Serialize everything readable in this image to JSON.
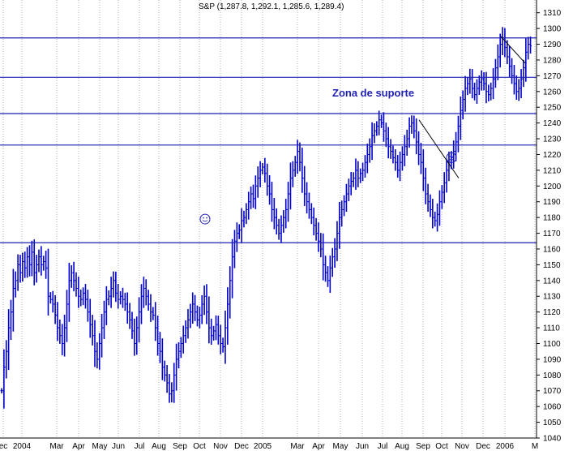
{
  "chart_data": {
    "type": "ohlc",
    "title": "S&P (1,287.8, 1,292.1, 1,285.6, 1,289.4)",
    "xlabel": "",
    "ylabel": "",
    "ylim": [
      1040,
      1315
    ],
    "y_ticks": [
      1040,
      1050,
      1060,
      1070,
      1080,
      1090,
      1100,
      1110,
      1120,
      1130,
      1140,
      1150,
      1160,
      1170,
      1180,
      1190,
      1200,
      1210,
      1220,
      1230,
      1240,
      1250,
      1260,
      1270,
      1280,
      1290,
      1300,
      1310
    ],
    "x_ticks": [
      "ec",
      "2004",
      "Mar",
      "Apr",
      "May",
      "Jun",
      "Jul",
      "Aug",
      "Sep",
      "Oct",
      "Nov",
      "Dec",
      "2005",
      "Mar",
      "Apr",
      "May",
      "Jun",
      "Jul",
      "Aug",
      "Sep",
      "Oct",
      "Nov",
      "Dec",
      "2006",
      "M"
    ],
    "grid": "vertical-dotted",
    "colors": {
      "bars": "#0000cc",
      "support_lines": "#1f1fb4",
      "annotation": "#1f1fb4",
      "background": "#ffffff"
    },
    "support_levels": [
      1294,
      1269,
      1246,
      1226,
      1164
    ],
    "annotation": "Zona de suporte",
    "series": [
      {
        "points": [
          [
            0,
            1070
          ],
          [
            2,
            1085
          ],
          [
            4,
            1095
          ],
          [
            6,
            1110
          ],
          [
            8,
            1120
          ],
          [
            10,
            1135
          ],
          [
            12,
            1140
          ],
          [
            14,
            1150
          ],
          [
            16,
            1145
          ],
          [
            18,
            1152
          ],
          [
            20,
            1148
          ],
          [
            22,
            1155
          ],
          [
            24,
            1150
          ],
          [
            26,
            1158
          ],
          [
            28,
            1145
          ],
          [
            30,
            1150
          ],
          [
            32,
            1155
          ],
          [
            34,
            1150
          ],
          [
            36,
            1152
          ],
          [
            38,
            1148
          ],
          [
            40,
            1130
          ],
          [
            42,
            1128
          ],
          [
            44,
            1125
          ],
          [
            46,
            1118
          ],
          [
            48,
            1110
          ],
          [
            50,
            1105
          ],
          [
            52,
            1100
          ],
          [
            54,
            1110
          ],
          [
            56,
            1125
          ],
          [
            58,
            1140
          ],
          [
            60,
            1145
          ],
          [
            62,
            1140
          ],
          [
            64,
            1135
          ],
          [
            66,
            1130
          ],
          [
            68,
            1128
          ],
          [
            70,
            1132
          ],
          [
            72,
            1128
          ],
          [
            74,
            1120
          ],
          [
            76,
            1112
          ],
          [
            78,
            1105
          ],
          [
            80,
            1095
          ],
          [
            82,
            1090
          ],
          [
            84,
            1100
          ],
          [
            86,
            1110
          ],
          [
            88,
            1120
          ],
          [
            90,
            1128
          ],
          [
            92,
            1130
          ],
          [
            94,
            1135
          ],
          [
            96,
            1140
          ],
          [
            98,
            1132
          ],
          [
            100,
            1128
          ],
          [
            102,
            1130
          ],
          [
            104,
            1128
          ],
          [
            106,
            1125
          ],
          [
            108,
            1120
          ],
          [
            110,
            1115
          ],
          [
            112,
            1108
          ],
          [
            114,
            1100
          ],
          [
            116,
            1110
          ],
          [
            118,
            1120
          ],
          [
            120,
            1130
          ],
          [
            122,
            1135
          ],
          [
            124,
            1130
          ],
          [
            126,
            1125
          ],
          [
            128,
            1120
          ],
          [
            130,
            1118
          ],
          [
            132,
            1110
          ],
          [
            134,
            1100
          ],
          [
            136,
            1095
          ],
          [
            138,
            1085
          ],
          [
            140,
            1080
          ],
          [
            142,
            1075
          ],
          [
            144,
            1068
          ],
          [
            146,
            1070
          ],
          [
            148,
            1080
          ],
          [
            150,
            1090
          ],
          [
            152,
            1095
          ],
          [
            154,
            1100
          ],
          [
            156,
            1105
          ],
          [
            158,
            1110
          ],
          [
            160,
            1115
          ],
          [
            162,
            1120
          ],
          [
            164,
            1125
          ],
          [
            166,
            1120
          ],
          [
            168,
            1115
          ],
          [
            170,
            1118
          ],
          [
            172,
            1125
          ],
          [
            174,
            1130
          ],
          [
            176,
            1120
          ],
          [
            178,
            1110
          ],
          [
            180,
            1105
          ],
          [
            182,
            1108
          ],
          [
            184,
            1112
          ],
          [
            186,
            1105
          ],
          [
            188,
            1100
          ],
          [
            190,
            1098
          ],
          [
            192,
            1110
          ],
          [
            194,
            1125
          ],
          [
            196,
            1140
          ],
          [
            198,
            1155
          ],
          [
            200,
            1165
          ],
          [
            202,
            1170
          ],
          [
            204,
            1172
          ],
          [
            206,
            1178
          ],
          [
            208,
            1180
          ],
          [
            210,
            1185
          ],
          [
            212,
            1190
          ],
          [
            214,
            1195
          ],
          [
            216,
            1192
          ],
          [
            218,
            1200
          ],
          [
            220,
            1205
          ],
          [
            222,
            1210
          ],
          [
            224,
            1212
          ],
          [
            226,
            1208
          ],
          [
            228,
            1200
          ],
          [
            230,
            1195
          ],
          [
            232,
            1185
          ],
          [
            234,
            1180
          ],
          [
            236,
            1175
          ],
          [
            238,
            1170
          ],
          [
            240,
            1175
          ],
          [
            242,
            1180
          ],
          [
            244,
            1185
          ],
          [
            246,
            1195
          ],
          [
            248,
            1205
          ],
          [
            250,
            1210
          ],
          [
            252,
            1215
          ],
          [
            254,
            1222
          ],
          [
            256,
            1215
          ],
          [
            258,
            1205
          ],
          [
            260,
            1195
          ],
          [
            262,
            1190
          ],
          [
            264,
            1185
          ],
          [
            266,
            1180
          ],
          [
            268,
            1175
          ],
          [
            270,
            1170
          ],
          [
            272,
            1165
          ],
          [
            274,
            1160
          ],
          [
            276,
            1150
          ],
          [
            278,
            1145
          ],
          [
            280,
            1140
          ],
          [
            282,
            1148
          ],
          [
            284,
            1155
          ],
          [
            286,
            1160
          ],
          [
            288,
            1170
          ],
          [
            290,
            1180
          ],
          [
            292,
            1185
          ],
          [
            294,
            1190
          ],
          [
            296,
            1195
          ],
          [
            298,
            1200
          ],
          [
            300,
            1203
          ],
          [
            302,
            1205
          ],
          [
            304,
            1210
          ],
          [
            306,
            1205
          ],
          [
            308,
            1208
          ],
          [
            310,
            1210
          ],
          [
            312,
            1215
          ],
          [
            314,
            1220
          ],
          [
            316,
            1225
          ],
          [
            318,
            1232
          ],
          [
            320,
            1235
          ],
          [
            322,
            1238
          ],
          [
            324,
            1242
          ],
          [
            326,
            1240
          ],
          [
            328,
            1235
          ],
          [
            330,
            1230
          ],
          [
            332,
            1225
          ],
          [
            334,
            1222
          ],
          [
            336,
            1218
          ],
          [
            338,
            1215
          ],
          [
            340,
            1210
          ],
          [
            342,
            1215
          ],
          [
            344,
            1220
          ],
          [
            346,
            1225
          ],
          [
            348,
            1230
          ],
          [
            350,
            1238
          ],
          [
            352,
            1240
          ],
          [
            354,
            1235
          ],
          [
            356,
            1228
          ],
          [
            358,
            1220
          ],
          [
            360,
            1215
          ],
          [
            362,
            1205
          ],
          [
            364,
            1195
          ],
          [
            366,
            1190
          ],
          [
            368,
            1185
          ],
          [
            370,
            1180
          ],
          [
            372,
            1178
          ],
          [
            374,
            1182
          ],
          [
            376,
            1190
          ],
          [
            378,
            1196
          ],
          [
            380,
            1202
          ],
          [
            382,
            1210
          ],
          [
            384,
            1215
          ],
          [
            386,
            1218
          ],
          [
            388,
            1222
          ],
          [
            390,
            1228
          ],
          [
            392,
            1238
          ],
          [
            394,
            1248
          ],
          [
            396,
            1255
          ],
          [
            398,
            1262
          ],
          [
            400,
            1265
          ],
          [
            402,
            1268
          ],
          [
            404,
            1262
          ],
          [
            406,
            1258
          ],
          [
            408,
            1262
          ],
          [
            410,
            1266
          ],
          [
            412,
            1268
          ],
          [
            414,
            1265
          ],
          [
            416,
            1260
          ],
          [
            418,
            1258
          ],
          [
            420,
            1262
          ],
          [
            422,
            1268
          ],
          [
            424,
            1275
          ],
          [
            426,
            1282
          ],
          [
            428,
            1290
          ],
          [
            430,
            1294
          ],
          [
            432,
            1288
          ],
          [
            434,
            1282
          ],
          [
            436,
            1276
          ],
          [
            438,
            1270
          ],
          [
            440,
            1265
          ],
          [
            442,
            1260
          ],
          [
            444,
            1262
          ],
          [
            446,
            1268
          ],
          [
            448,
            1275
          ],
          [
            450,
            1285
          ],
          [
            452,
            1290
          ],
          [
            454,
            1289
          ]
        ]
      }
    ]
  }
}
